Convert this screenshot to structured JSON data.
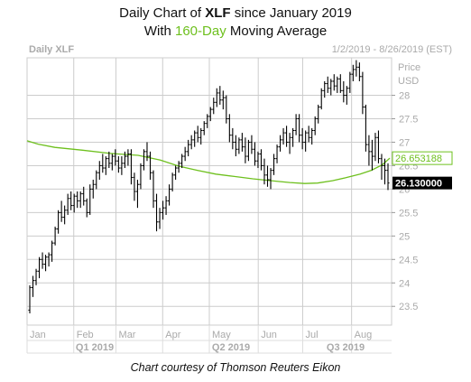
{
  "title": {
    "line1_pre": "Daily Chart of ",
    "line1_bold": "XLF",
    "line1_post": " since January 2019",
    "line2_pre": "With ",
    "line2_green": "160-Day",
    "line2_post": " Moving Average"
  },
  "credit": "Chart courtesy of Thomson Reuters Eikon",
  "colors": {
    "ma_line": "#6ec01e",
    "bars": "#000000",
    "grid": "#cccccc",
    "muted_text": "#aaaaaa",
    "last_price_bg": "#000000"
  },
  "chart_data": {
    "type": "ohlc-bar",
    "symbol_label": "Daily XLF",
    "date_range_label": "1/2/2019 - 8/26/2019 (EST)",
    "axis_title": "Price",
    "currency": "USD",
    "y_ticks": [
      {
        "value": 28,
        "label": "28"
      },
      {
        "value": 27.5,
        "label": "27.5"
      },
      {
        "value": 27,
        "label": "27"
      },
      {
        "value": 26.5,
        "label": "26.5"
      },
      {
        "value": 26,
        "label": "26"
      },
      {
        "value": 25.5,
        "label": "25.5"
      },
      {
        "value": 25,
        "label": "25"
      },
      {
        "value": 24.5,
        "label": "24.5"
      },
      {
        "value": 24,
        "label": "24"
      },
      {
        "value": 23.5,
        "label": "23.5"
      }
    ],
    "ylim": [
      23.1,
      28.8
    ],
    "month_labels": [
      "Jan",
      "Feb",
      "Mar",
      "Apr",
      "May",
      "Jun",
      "Jul",
      "Aug"
    ],
    "quarter_labels": [
      "Q1 2019",
      "Q2 2019",
      "Q3 2019"
    ],
    "ma_label": "26.653188",
    "last_price_label": "26.130000",
    "series": [
      {
        "name": "160-Day Moving Average",
        "points": [
          [
            0,
            27.03
          ],
          [
            6,
            26.96
          ],
          [
            15,
            26.89
          ],
          [
            30,
            26.83
          ],
          [
            45,
            26.76
          ],
          [
            60,
            26.72
          ],
          [
            72,
            26.62
          ],
          [
            82,
            26.49
          ],
          [
            92,
            26.4
          ],
          [
            102,
            26.32
          ],
          [
            112,
            26.27
          ],
          [
            122,
            26.22
          ],
          [
            132,
            26.18
          ],
          [
            142,
            26.14
          ],
          [
            150,
            26.12
          ],
          [
            157,
            26.13
          ],
          [
            165,
            26.18
          ],
          [
            172,
            26.24
          ],
          [
            180,
            26.32
          ],
          [
            186,
            26.4
          ],
          [
            192,
            26.52
          ],
          [
            196,
            26.66
          ]
        ]
      },
      {
        "name": "XLF",
        "values": [
          [
            23.42,
            23.95,
            23.35,
            23.9
          ],
          [
            23.9,
            24.15,
            23.7,
            24.05
          ],
          [
            24.05,
            24.3,
            23.95,
            24.25
          ],
          [
            24.25,
            24.55,
            24.1,
            24.5
          ],
          [
            24.5,
            24.65,
            24.3,
            24.4
          ],
          [
            24.4,
            24.6,
            24.25,
            24.55
          ],
          [
            24.55,
            24.65,
            24.35,
            24.6
          ],
          [
            24.6,
            24.9,
            24.45,
            24.85
          ],
          [
            24.85,
            25.2,
            24.8,
            25.15
          ],
          [
            25.15,
            25.55,
            25.05,
            25.5
          ],
          [
            25.5,
            25.75,
            25.3,
            25.4
          ],
          [
            25.4,
            25.65,
            25.25,
            25.55
          ],
          [
            25.55,
            25.9,
            25.45,
            25.8
          ],
          [
            25.8,
            25.95,
            25.55,
            25.65
          ],
          [
            25.65,
            25.9,
            25.5,
            25.85
          ],
          [
            25.85,
            25.95,
            25.6,
            25.75
          ],
          [
            25.75,
            25.95,
            25.6,
            25.9
          ],
          [
            25.9,
            26.05,
            25.65,
            25.75
          ],
          [
            25.75,
            25.8,
            25.4,
            25.5
          ],
          [
            25.5,
            26.1,
            25.45,
            26.0
          ],
          [
            26.0,
            26.2,
            25.8,
            26.1
          ],
          [
            26.1,
            26.4,
            26.0,
            26.35
          ],
          [
            26.35,
            26.6,
            26.2,
            26.5
          ],
          [
            26.5,
            26.75,
            26.35,
            26.45
          ],
          [
            26.45,
            26.7,
            26.3,
            26.65
          ],
          [
            26.65,
            26.8,
            26.45,
            26.55
          ],
          [
            26.55,
            26.75,
            26.4,
            26.7
          ],
          [
            26.7,
            26.85,
            26.5,
            26.6
          ],
          [
            26.6,
            26.7,
            26.35,
            26.45
          ],
          [
            26.45,
            26.7,
            26.3,
            26.55
          ],
          [
            26.55,
            26.8,
            26.45,
            26.7
          ],
          [
            26.7,
            26.85,
            26.5,
            26.75
          ],
          [
            26.75,
            26.85,
            26.1,
            26.25
          ],
          [
            26.25,
            26.35,
            25.75,
            25.95
          ],
          [
            25.95,
            26.2,
            25.6,
            26.1
          ],
          [
            26.1,
            26.55,
            26.0,
            26.5
          ],
          [
            26.5,
            26.85,
            26.4,
            26.8
          ],
          [
            26.8,
            27.0,
            26.6,
            26.7
          ],
          [
            26.7,
            26.8,
            26.2,
            26.35
          ],
          [
            26.35,
            26.4,
            25.6,
            25.75
          ],
          [
            25.75,
            25.9,
            25.1,
            25.3
          ],
          [
            25.3,
            25.6,
            25.15,
            25.5
          ],
          [
            25.5,
            25.75,
            25.35,
            25.6
          ],
          [
            25.6,
            25.85,
            25.45,
            25.75
          ],
          [
            25.75,
            26.1,
            25.65,
            26.0
          ],
          [
            26.0,
            26.35,
            25.95,
            26.3
          ],
          [
            26.3,
            26.5,
            26.2,
            26.45
          ],
          [
            26.45,
            26.6,
            26.35,
            26.55
          ],
          [
            26.55,
            26.75,
            26.45,
            26.7
          ],
          [
            26.7,
            26.9,
            26.6,
            26.8
          ],
          [
            26.8,
            27.05,
            26.7,
            26.95
          ],
          [
            26.95,
            27.15,
            26.85,
            27.05
          ],
          [
            27.05,
            27.25,
            26.9,
            27.2
          ],
          [
            27.2,
            27.35,
            27.0,
            27.1
          ],
          [
            27.1,
            27.3,
            26.95,
            27.25
          ],
          [
            27.25,
            27.45,
            27.15,
            27.4
          ],
          [
            27.4,
            27.6,
            27.3,
            27.55
          ],
          [
            27.55,
            27.75,
            27.45,
            27.7
          ],
          [
            27.7,
            27.95,
            27.6,
            27.85
          ],
          [
            27.85,
            28.15,
            27.75,
            28.05
          ],
          [
            28.05,
            28.2,
            27.8,
            27.9
          ],
          [
            27.9,
            28.1,
            27.7,
            27.95
          ],
          [
            27.95,
            28.0,
            27.4,
            27.5
          ],
          [
            27.5,
            27.6,
            27.0,
            27.15
          ],
          [
            27.15,
            27.3,
            26.85,
            27.0
          ],
          [
            27.0,
            27.15,
            26.7,
            26.85
          ],
          [
            26.85,
            27.1,
            26.75,
            27.05
          ],
          [
            27.05,
            27.2,
            26.8,
            26.9
          ],
          [
            26.9,
            27.1,
            26.55,
            26.7
          ],
          [
            26.7,
            27.05,
            26.6,
            27.0
          ],
          [
            27.0,
            27.15,
            26.75,
            26.85
          ],
          [
            26.85,
            27.0,
            26.5,
            26.6
          ],
          [
            26.6,
            26.8,
            26.45,
            26.75
          ],
          [
            26.75,
            26.85,
            26.4,
            26.5
          ],
          [
            26.5,
            26.65,
            26.1,
            26.3
          ],
          [
            26.3,
            26.5,
            26.05,
            26.2
          ],
          [
            26.2,
            26.45,
            26.0,
            26.4
          ],
          [
            26.4,
            26.75,
            26.3,
            26.65
          ],
          [
            26.65,
            26.95,
            26.55,
            26.9
          ],
          [
            26.9,
            27.15,
            26.8,
            27.05
          ],
          [
            27.05,
            27.3,
            26.95,
            27.2
          ],
          [
            27.2,
            27.35,
            26.9,
            27.0
          ],
          [
            27.0,
            27.2,
            26.75,
            27.1
          ],
          [
            27.1,
            27.3,
            26.9,
            27.25
          ],
          [
            27.25,
            27.6,
            27.15,
            27.5
          ],
          [
            27.5,
            27.6,
            27.0,
            27.15
          ],
          [
            27.15,
            27.3,
            26.85,
            27.0
          ],
          [
            27.0,
            27.25,
            26.8,
            27.2
          ],
          [
            27.2,
            27.35,
            27.0,
            27.1
          ],
          [
            27.1,
            27.3,
            26.95,
            27.25
          ],
          [
            27.25,
            27.55,
            27.15,
            27.5
          ],
          [
            27.5,
            27.8,
            27.4,
            27.75
          ],
          [
            27.75,
            28.15,
            27.7,
            28.1
          ],
          [
            28.1,
            28.3,
            27.95,
            28.25
          ],
          [
            28.25,
            28.4,
            28.05,
            28.15
          ],
          [
            28.15,
            28.35,
            28.0,
            28.3
          ],
          [
            28.3,
            28.45,
            28.1,
            28.2
          ],
          [
            28.2,
            28.4,
            28.05,
            28.35
          ],
          [
            28.35,
            28.45,
            28.05,
            28.1
          ],
          [
            28.1,
            28.3,
            27.85,
            28.0
          ],
          [
            28.0,
            28.2,
            27.8,
            28.15
          ],
          [
            28.15,
            28.5,
            28.05,
            28.45
          ],
          [
            28.45,
            28.65,
            28.3,
            28.55
          ],
          [
            28.55,
            28.75,
            28.4,
            28.6
          ],
          [
            28.6,
            28.7,
            28.3,
            28.4
          ],
          [
            28.4,
            28.5,
            27.6,
            27.75
          ],
          [
            27.75,
            27.8,
            26.8,
            26.95
          ],
          [
            26.95,
            27.15,
            26.5,
            26.8
          ],
          [
            26.8,
            27.05,
            26.4,
            26.7
          ],
          [
            26.7,
            27.2,
            26.6,
            27.1
          ],
          [
            27.1,
            27.25,
            26.55,
            26.65
          ],
          [
            26.65,
            26.75,
            26.2,
            26.5
          ],
          [
            26.5,
            26.65,
            26.1,
            26.4
          ],
          [
            26.4,
            26.55,
            25.98,
            26.13
          ]
        ]
      }
    ]
  }
}
